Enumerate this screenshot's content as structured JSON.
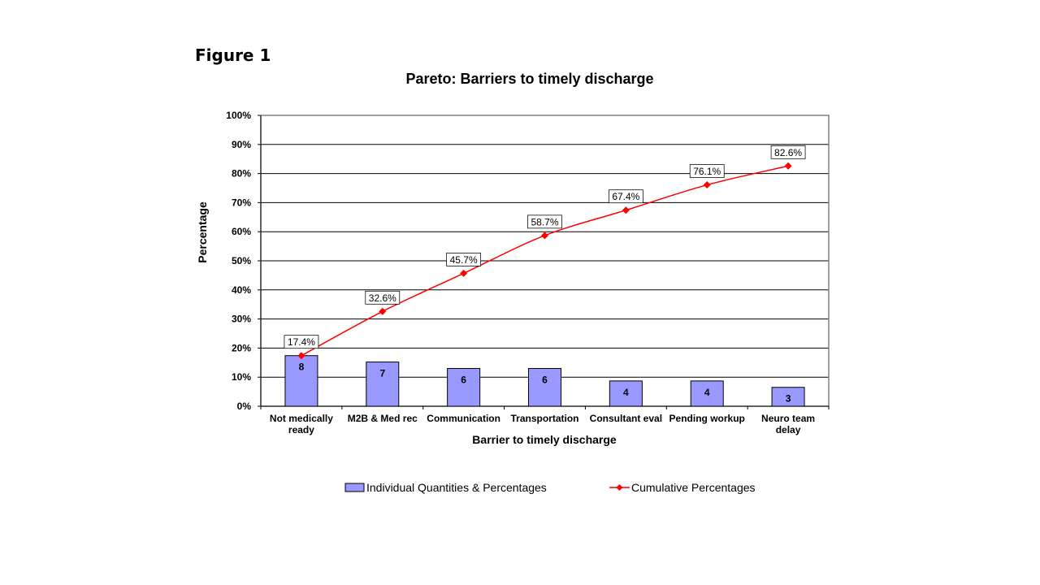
{
  "figure_label": "Figure 1",
  "colors": {
    "bar_fill": "#9999FF",
    "bar_stroke": "#000000",
    "line": "#FF0000",
    "gridline": "#000000",
    "plot_background": "#FFFFFF"
  },
  "chart_data": {
    "type": "bar",
    "title": "Pareto: Barriers to timely discharge",
    "xlabel": "Barrier to timely discharge",
    "ylabel": "Percentage",
    "ylim": [
      0,
      100
    ],
    "y_ticks": [
      "0%",
      "10%",
      "20%",
      "30%",
      "40%",
      "50%",
      "60%",
      "70%",
      "80%",
      "90%",
      "100%"
    ],
    "categories": [
      [
        "Not medically",
        "ready"
      ],
      [
        "M2B & Med rec"
      ],
      [
        "Communication"
      ],
      [
        "Transportation"
      ],
      [
        "Consultant eval"
      ],
      [
        "Pending workup"
      ],
      [
        "Neuro team",
        "delay"
      ]
    ],
    "grid": true,
    "legend_position": "bottom",
    "series": [
      {
        "name": "Individual Quantities & Percentages",
        "type": "bar",
        "quantities": [
          8,
          7,
          6,
          6,
          4,
          4,
          3
        ],
        "values": [
          17.4,
          15.2,
          13.0,
          13.0,
          8.7,
          8.7,
          6.5
        ]
      },
      {
        "name": "Cumulative Percentages",
        "type": "line",
        "marker": "diamond",
        "values": [
          17.4,
          32.6,
          45.7,
          58.7,
          67.4,
          76.1,
          82.6
        ],
        "labels": [
          "17.4%",
          "32.6%",
          "45.7%",
          "58.7%",
          "67.4%",
          "76.1%",
          "82.6%"
        ]
      }
    ]
  }
}
